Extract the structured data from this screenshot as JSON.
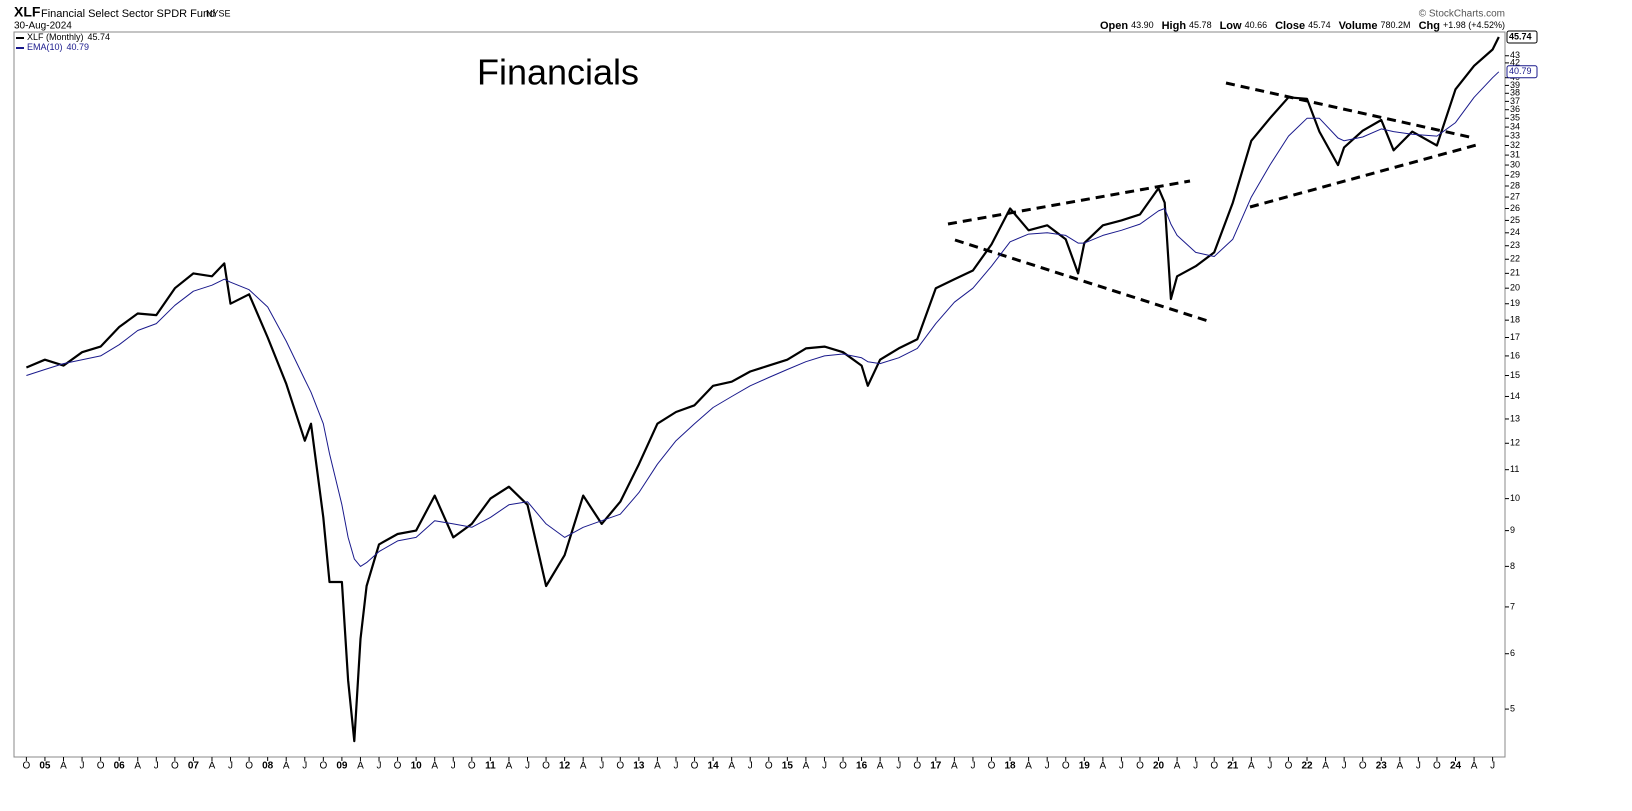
{
  "chart_data": {
    "type": "line",
    "symbol": "XLF",
    "fund_name": "Financial Select Sector SPDR Fund",
    "exchange": "NYSE",
    "date": "30-Aug-2024",
    "credit": "© StockCharts.com",
    "annotation": "Financials",
    "quote": [
      {
        "label": "Open",
        "value": "43.90"
      },
      {
        "label": "High",
        "value": "45.78"
      },
      {
        "label": "Low",
        "value": "40.66"
      },
      {
        "label": "Close",
        "value": "45.74"
      },
      {
        "label": "Volume",
        "value": "780.2M"
      },
      {
        "label": "Chg",
        "value": "+1.98 (+4.52%)"
      }
    ],
    "log_scale": true,
    "grid": false,
    "x": [
      "2004-10",
      "2005-01",
      "2005-04",
      "2005-07",
      "2005-10",
      "2006-01",
      "2006-04",
      "2006-07",
      "2006-10",
      "2007-01",
      "2007-04",
      "2007-06",
      "2007-07",
      "2007-10",
      "2008-01",
      "2008-04",
      "2008-07",
      "2008-08",
      "2008-10",
      "2008-11",
      "2009-01",
      "2009-02",
      "2009-03",
      "2009-04",
      "2009-05",
      "2009-07",
      "2009-10",
      "2010-01",
      "2010-04",
      "2010-07",
      "2010-10",
      "2011-01",
      "2011-04",
      "2011-07",
      "2011-10",
      "2012-01",
      "2012-04",
      "2012-07",
      "2012-10",
      "2013-01",
      "2013-04",
      "2013-07",
      "2013-10",
      "2014-01",
      "2014-04",
      "2014-07",
      "2014-10",
      "2015-01",
      "2015-04",
      "2015-07",
      "2015-10",
      "2016-01",
      "2016-02",
      "2016-04",
      "2016-07",
      "2016-10",
      "2017-01",
      "2017-04",
      "2017-07",
      "2017-10",
      "2018-01",
      "2018-04",
      "2018-07",
      "2018-10",
      "2018-12",
      "2019-01",
      "2019-04",
      "2019-07",
      "2019-10",
      "2020-01",
      "2020-02",
      "2020-03",
      "2020-04",
      "2020-07",
      "2020-10",
      "2021-01",
      "2021-04",
      "2021-07",
      "2021-10",
      "2022-01",
      "2022-03",
      "2022-06",
      "2022-07",
      "2022-10",
      "2023-01",
      "2023-03",
      "2023-06",
      "2023-10",
      "2024-01",
      "2024-04",
      "2024-07",
      "2024-08"
    ],
    "series": [
      {
        "name": "XLF (Monthly)",
        "color": "#000000",
        "width": 2.2,
        "values": [
          15.4,
          15.8,
          15.5,
          16.2,
          16.5,
          17.6,
          18.4,
          18.3,
          20,
          21,
          20.8,
          21.7,
          19,
          19.6,
          17,
          14.6,
          12.1,
          12.8,
          9.4,
          7.6,
          7.6,
          5.5,
          4.5,
          6.3,
          7.5,
          8.6,
          8.9,
          9.0,
          10.1,
          8.8,
          9.2,
          10,
          10.4,
          9.8,
          7.5,
          8.3,
          10.1,
          9.2,
          9.9,
          11.2,
          12.8,
          13.3,
          13.6,
          14.5,
          14.7,
          15.2,
          15.5,
          15.8,
          16.4,
          16.5,
          16.2,
          15.5,
          14.5,
          15.8,
          16.4,
          16.9,
          20,
          20.6,
          21.2,
          23.1,
          26,
          24.2,
          24.6,
          23.5,
          21,
          23.2,
          24.6,
          25,
          25.5,
          27.8,
          26.5,
          19.3,
          20.8,
          21.5,
          22.5,
          26.5,
          32.5,
          35,
          37.5,
          37.3,
          33.5,
          30,
          31.8,
          33.6,
          34.8,
          31.5,
          33.5,
          32,
          38.5,
          41.6,
          43.9,
          45.74
        ]
      },
      {
        "name": "EMA(10)",
        "color": "#1a1a8c",
        "width": 1,
        "values": [
          15.0,
          15.3,
          15.6,
          15.8,
          16.0,
          16.6,
          17.4,
          17.8,
          18.9,
          19.8,
          20.2,
          20.6,
          20.4,
          19.9,
          18.8,
          16.8,
          14.8,
          14.2,
          12.8,
          11.6,
          9.8,
          8.8,
          8.2,
          8.0,
          8.1,
          8.4,
          8.7,
          8.8,
          9.3,
          9.2,
          9.1,
          9.4,
          9.8,
          9.9,
          9.2,
          8.8,
          9.1,
          9.3,
          9.5,
          10.2,
          11.2,
          12.1,
          12.8,
          13.5,
          14.0,
          14.5,
          14.9,
          15.3,
          15.7,
          16.0,
          16.1,
          15.9,
          15.7,
          15.6,
          15.9,
          16.4,
          17.8,
          19.1,
          20.0,
          21.5,
          23.3,
          23.9,
          24.0,
          23.8,
          23.2,
          23.2,
          23.8,
          24.2,
          24.7,
          25.8,
          26.0,
          24.7,
          23.8,
          22.5,
          22.2,
          23.5,
          27.0,
          30.0,
          33.0,
          35.0,
          35.0,
          32.8,
          32.5,
          32.9,
          33.8,
          33.5,
          33.2,
          33.0,
          34.5,
          37.5,
          40.0,
          40.79
        ]
      }
    ],
    "xlim": [
      "2004-08",
      "2024-09"
    ],
    "ylim": [
      4.27,
      46.5
    ],
    "yticks": [
      5,
      6,
      7,
      8,
      9,
      10,
      11,
      12,
      13,
      14,
      15,
      16,
      17,
      18,
      19,
      20,
      21,
      22,
      23,
      24,
      25,
      26,
      27,
      28,
      29,
      30,
      31,
      32,
      33,
      34,
      35,
      36,
      37,
      38,
      39,
      40,
      42,
      43
    ],
    "xticks": [
      {
        "value": "2004-10",
        "label": "O"
      },
      {
        "value": "2005-01",
        "label": "05"
      },
      {
        "value": "2005-04",
        "label": "A"
      },
      {
        "value": "2005-07",
        "label": "J"
      },
      {
        "value": "2005-10",
        "label": "O"
      },
      {
        "value": "2006-01",
        "label": "06"
      },
      {
        "value": "2006-04",
        "label": "A"
      },
      {
        "value": "2006-07",
        "label": "J"
      },
      {
        "value": "2006-10",
        "label": "O"
      },
      {
        "value": "2007-01",
        "label": "07"
      },
      {
        "value": "2007-04",
        "label": "A"
      },
      {
        "value": "2007-07",
        "label": "J"
      },
      {
        "value": "2007-10",
        "label": "O"
      },
      {
        "value": "2008-01",
        "label": "08"
      },
      {
        "value": "2008-04",
        "label": "A"
      },
      {
        "value": "2008-07",
        "label": "J"
      },
      {
        "value": "2008-10",
        "label": "O"
      },
      {
        "value": "2009-01",
        "label": "09"
      },
      {
        "value": "2009-04",
        "label": "A"
      },
      {
        "value": "2009-07",
        "label": "J"
      },
      {
        "value": "2009-10",
        "label": "O"
      },
      {
        "value": "2010-01",
        "label": "10"
      },
      {
        "value": "2010-04",
        "label": "A"
      },
      {
        "value": "2010-07",
        "label": "J"
      },
      {
        "value": "2010-10",
        "label": "O"
      },
      {
        "value": "2011-01",
        "label": "11"
      },
      {
        "value": "2011-04",
        "label": "A"
      },
      {
        "value": "2011-07",
        "label": "J"
      },
      {
        "value": "2011-10",
        "label": "O"
      },
      {
        "value": "2012-01",
        "label": "12"
      },
      {
        "value": "2012-04",
        "label": "A"
      },
      {
        "value": "2012-07",
        "label": "J"
      },
      {
        "value": "2012-10",
        "label": "O"
      },
      {
        "value": "2013-01",
        "label": "13"
      },
      {
        "value": "2013-04",
        "label": "A"
      },
      {
        "value": "2013-07",
        "label": "J"
      },
      {
        "value": "2013-10",
        "label": "O"
      },
      {
        "value": "2014-01",
        "label": "14"
      },
      {
        "value": "2014-04",
        "label": "A"
      },
      {
        "value": "2014-07",
        "label": "J"
      },
      {
        "value": "2014-10",
        "label": "O"
      },
      {
        "value": "2015-01",
        "label": "15"
      },
      {
        "value": "2015-04",
        "label": "A"
      },
      {
        "value": "2015-07",
        "label": "J"
      },
      {
        "value": "2015-10",
        "label": "O"
      },
      {
        "value": "2016-01",
        "label": "16"
      },
      {
        "value": "2016-04",
        "label": "A"
      },
      {
        "value": "2016-07",
        "label": "J"
      },
      {
        "value": "2016-10",
        "label": "O"
      },
      {
        "value": "2017-01",
        "label": "17"
      },
      {
        "value": "2017-04",
        "label": "A"
      },
      {
        "value": "2017-07",
        "label": "J"
      },
      {
        "value": "2017-10",
        "label": "O"
      },
      {
        "value": "2018-01",
        "label": "18"
      },
      {
        "value": "2018-04",
        "label": "A"
      },
      {
        "value": "2018-07",
        "label": "J"
      },
      {
        "value": "2018-10",
        "label": "O"
      },
      {
        "value": "2019-01",
        "label": "19"
      },
      {
        "value": "2019-04",
        "label": "A"
      },
      {
        "value": "2019-07",
        "label": "J"
      },
      {
        "value": "2019-10",
        "label": "O"
      },
      {
        "value": "2020-01",
        "label": "20"
      },
      {
        "value": "2020-04",
        "label": "A"
      },
      {
        "value": "2020-07",
        "label": "J"
      },
      {
        "value": "2020-10",
        "label": "O"
      },
      {
        "value": "2021-01",
        "label": "21"
      },
      {
        "value": "2021-04",
        "label": "A"
      },
      {
        "value": "2021-07",
        "label": "J"
      },
      {
        "value": "2021-10",
        "label": "O"
      },
      {
        "value": "2022-01",
        "label": "22"
      },
      {
        "value": "2022-04",
        "label": "A"
      },
      {
        "value": "2022-07",
        "label": "J"
      },
      {
        "value": "2022-10",
        "label": "O"
      },
      {
        "value": "2023-01",
        "label": "23"
      },
      {
        "value": "2023-04",
        "label": "A"
      },
      {
        "value": "2023-07",
        "label": "J"
      },
      {
        "value": "2023-10",
        "label": "O"
      },
      {
        "value": "2024-01",
        "label": "24"
      },
      {
        "value": "2024-04",
        "label": "A"
      },
      {
        "value": "2024-07",
        "label": "J"
      }
    ]
  }
}
